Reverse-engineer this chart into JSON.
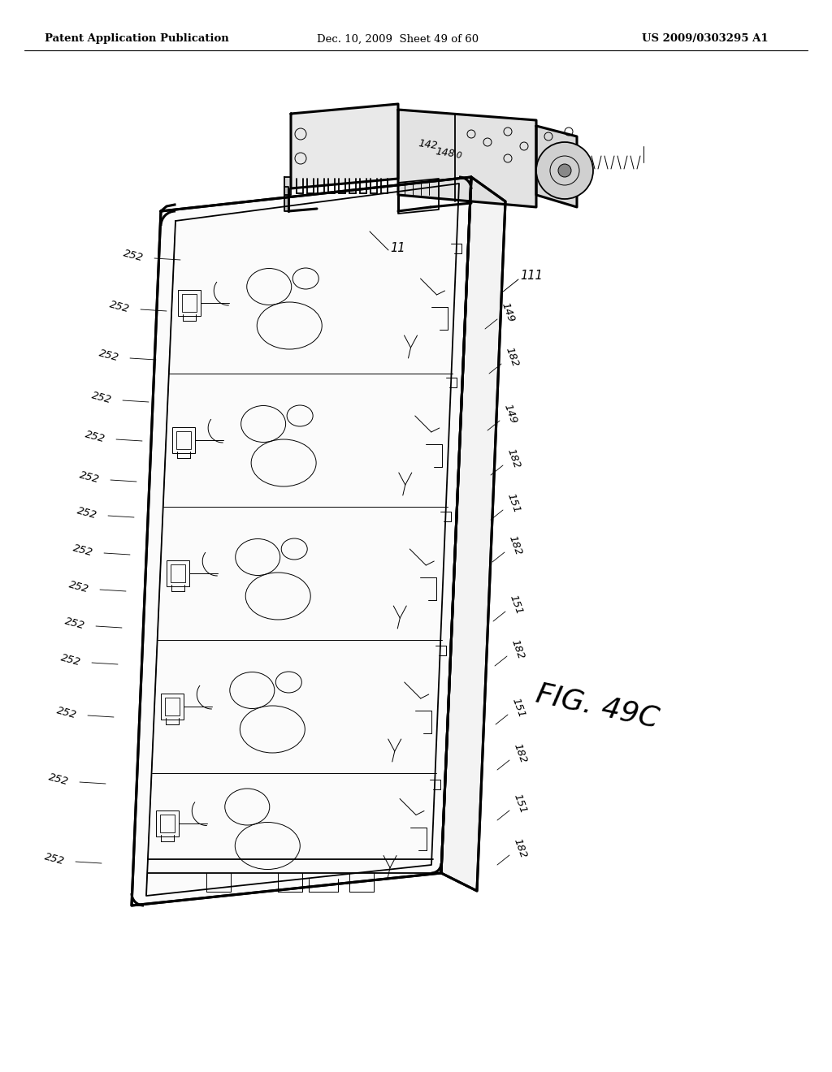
{
  "background_color": "#ffffff",
  "header_left": "Patent Application Publication",
  "header_center": "Dec. 10, 2009  Sheet 49 of 60",
  "header_right": "US 2009/0303295 A1",
  "fig_label": "FIG. 49C",
  "header_font_size": 9.5,
  "text_color": "#000000",
  "line_color": "#000000",
  "annotation_font_size": 10.5
}
